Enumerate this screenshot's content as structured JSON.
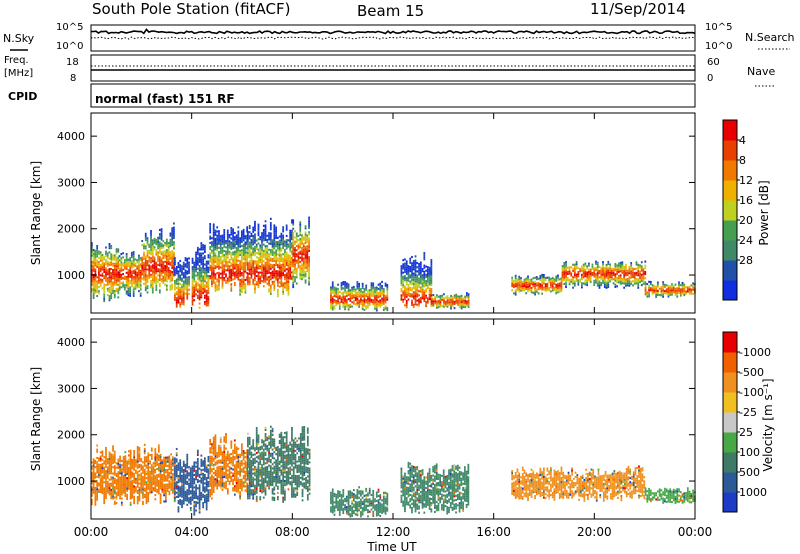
{
  "header": {
    "station": "South Pole Station (fitACF)",
    "beam": "Beam 15",
    "date": "11/Sep/2014"
  },
  "strip": {
    "nsky_label": "N.Sky",
    "nsky_top": "10^5",
    "nsky_bottom": "10^0",
    "nsearch_label": "N.Search",
    "nsearch_top": "10^5",
    "nsearch_bottom": "10^0",
    "freq_label": "Freq.",
    "freq_unit": "[MHz]",
    "freq_top": "18",
    "freq_bottom": "8",
    "nave_label": "Nave",
    "nave_top": "60",
    "nave_bottom": "0",
    "cpid_label": "CPID",
    "cpid_value": "normal (fast) 151 RF"
  },
  "chart_data": [
    {
      "type": "heatmap",
      "name": "power",
      "ylabel": "Slant Range [km]",
      "xlabel": "",
      "x_ticks": [
        "00:00",
        "04:00",
        "08:00",
        "12:00",
        "16:00",
        "20:00",
        "00:00"
      ],
      "y_ticks": [
        1000,
        2000,
        3000,
        4000
      ],
      "xlim_hours": [
        0,
        24
      ],
      "ylim_km": [
        180,
        4500
      ],
      "colorbar": {
        "label": "Power [dB]",
        "ticks": [
          "4",
          "8",
          "12",
          "16",
          "20",
          "24",
          "28"
        ],
        "colors": [
          "#1030e0",
          "#2050a8",
          "#3f8868",
          "#44a050",
          "#c0d020",
          "#f0b000",
          "#f07a00",
          "#e84000",
          "#e80000"
        ]
      },
      "echo_regions": [
        {
          "start_h": 0.0,
          "end_h": 1.1,
          "min_km": 400,
          "max_km": 1800,
          "peak_km": 1000
        },
        {
          "start_h": 1.1,
          "end_h": 2.0,
          "min_km": 500,
          "max_km": 1500,
          "peak_km": 1000
        },
        {
          "start_h": 2.0,
          "end_h": 3.3,
          "min_km": 550,
          "max_km": 2100,
          "peak_km": 1150
        },
        {
          "start_h": 3.3,
          "end_h": 3.9,
          "min_km": 250,
          "max_km": 1400,
          "peak_km": 450
        },
        {
          "start_h": 4.0,
          "end_h": 4.7,
          "min_km": 250,
          "max_km": 1700,
          "peak_km": 500
        },
        {
          "start_h": 4.7,
          "end_h": 6.2,
          "min_km": 550,
          "max_km": 2100,
          "peak_km": 1000
        },
        {
          "start_h": 6.2,
          "end_h": 8.0,
          "min_km": 500,
          "max_km": 2200,
          "peak_km": 1000
        },
        {
          "start_h": 8.0,
          "end_h": 8.7,
          "min_km": 700,
          "max_km": 2300,
          "peak_km": 1400
        },
        {
          "start_h": 9.5,
          "end_h": 11.8,
          "min_km": 200,
          "max_km": 850,
          "peak_km": 450
        },
        {
          "start_h": 12.3,
          "end_h": 13.5,
          "min_km": 250,
          "max_km": 1500,
          "peak_km": 450
        },
        {
          "start_h": 13.5,
          "end_h": 15.0,
          "min_km": 250,
          "max_km": 600,
          "peak_km": 400
        },
        {
          "start_h": 16.7,
          "end_h": 18.7,
          "min_km": 550,
          "max_km": 1000,
          "peak_km": 750
        },
        {
          "start_h": 18.7,
          "end_h": 22.0,
          "min_km": 700,
          "max_km": 1300,
          "peak_km": 1000
        },
        {
          "start_h": 22.0,
          "end_h": 24.0,
          "min_km": 500,
          "max_km": 850,
          "peak_km": 650
        }
      ]
    },
    {
      "type": "heatmap",
      "name": "velocity",
      "ylabel": "Slant Range [km]",
      "xlabel": "Time UT",
      "x_ticks": [
        "00:00",
        "04:00",
        "08:00",
        "12:00",
        "16:00",
        "20:00",
        "00:00"
      ],
      "y_ticks": [
        1000,
        2000,
        3000,
        4000
      ],
      "xlim_hours": [
        0,
        24
      ],
      "ylim_km": [
        180,
        4500
      ],
      "colorbar": {
        "label": "Velocity [m s⁻¹]",
        "ticks": [
          "1000",
          "500",
          "100",
          "25",
          "-25",
          "-100",
          "-500",
          "-1000"
        ],
        "colors": [
          "#1c3cc8",
          "#2c5a98",
          "#3f7a66",
          "#48a848",
          "#c8c8c8",
          "#f0c020",
          "#f09020",
          "#f06000",
          "#e80000"
        ]
      },
      "echo_regions": [
        {
          "start_h": 0.0,
          "end_h": 3.3,
          "min_km": 450,
          "max_km": 1800,
          "color": "#f07a00"
        },
        {
          "start_h": 3.3,
          "end_h": 4.7,
          "min_km": 250,
          "max_km": 1700,
          "color": "#2c5a98"
        },
        {
          "start_h": 4.7,
          "end_h": 6.2,
          "min_km": 550,
          "max_km": 2000,
          "color": "#f07a00"
        },
        {
          "start_h": 6.2,
          "end_h": 8.7,
          "min_km": 500,
          "max_km": 2200,
          "color": "#3f7a66"
        },
        {
          "start_h": 9.5,
          "end_h": 11.8,
          "min_km": 200,
          "max_km": 850,
          "color": "#3f8868"
        },
        {
          "start_h": 12.3,
          "end_h": 15.0,
          "min_km": 250,
          "max_km": 1400,
          "color": "#3f8868"
        },
        {
          "start_h": 16.7,
          "end_h": 22.0,
          "min_km": 550,
          "max_km": 1300,
          "color": "#f09020"
        },
        {
          "start_h": 22.0,
          "end_h": 24.0,
          "min_km": 500,
          "max_km": 850,
          "color": "#48a848"
        }
      ]
    }
  ]
}
